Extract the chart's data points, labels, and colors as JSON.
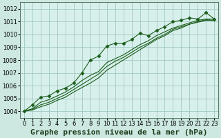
{
  "background_color": "#cce8e0",
  "plot_bg_color": "#d8f0ec",
  "grid_color": "#a0c8c0",
  "line_color": "#1a5c1a",
  "marker_color": "#1a5c1a",
  "title": "Graphe pression niveau de la mer (hPa)",
  "xlim": [
    -0.5,
    23.5
  ],
  "ylim": [
    1003.5,
    1012.5
  ],
  "xticks": [
    0,
    1,
    2,
    3,
    4,
    5,
    6,
    7,
    8,
    9,
    10,
    11,
    12,
    13,
    14,
    15,
    16,
    17,
    18,
    19,
    20,
    21,
    22,
    23
  ],
  "yticks": [
    1004,
    1005,
    1006,
    1007,
    1008,
    1009,
    1010,
    1011,
    1012
  ],
  "series_marked": [
    1004.0,
    1004.5,
    1005.1,
    1005.2,
    1005.6,
    1005.8,
    1006.2,
    1007.0,
    1008.0,
    1008.3,
    1009.1,
    1009.3,
    1009.3,
    1009.6,
    1010.1,
    1009.9,
    1010.3,
    1010.6,
    1011.0,
    1011.1,
    1011.3,
    1011.2,
    1011.7,
    1011.2
  ],
  "series_plain": [
    [
      1004.0,
      1004.2,
      1004.7,
      1004.9,
      1005.2,
      1005.5,
      1005.9,
      1006.4,
      1006.8,
      1007.1,
      1007.8,
      1008.1,
      1008.4,
      1008.8,
      1009.2,
      1009.5,
      1009.9,
      1010.2,
      1010.5,
      1010.7,
      1010.9,
      1011.1,
      1011.2,
      1011.2
    ],
    [
      1004.0,
      1004.15,
      1004.5,
      1004.7,
      1005.0,
      1005.3,
      1005.7,
      1006.1,
      1006.5,
      1006.9,
      1007.5,
      1007.9,
      1008.2,
      1008.6,
      1009.0,
      1009.3,
      1009.7,
      1010.0,
      1010.4,
      1010.6,
      1010.8,
      1011.0,
      1011.15,
      1011.1
    ],
    [
      1004.0,
      1004.1,
      1004.35,
      1004.55,
      1004.85,
      1005.1,
      1005.5,
      1005.85,
      1006.2,
      1006.6,
      1007.2,
      1007.6,
      1008.0,
      1008.4,
      1008.8,
      1009.2,
      1009.6,
      1009.9,
      1010.3,
      1010.5,
      1010.8,
      1010.95,
      1011.1,
      1011.1
    ]
  ],
  "fontsize_title": 8,
  "fontsize_ticks": 6
}
